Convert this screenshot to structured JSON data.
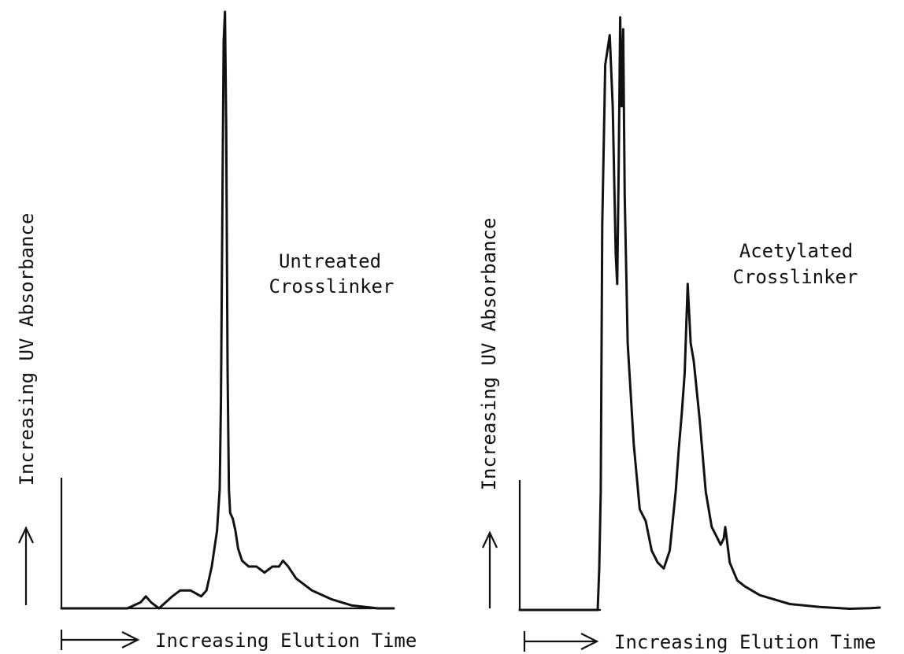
{
  "chart_data": [
    {
      "type": "line",
      "annotation": [
        "Untreated",
        "Crosslinker"
      ],
      "xlabel": "Increasing Elution Time",
      "ylabel": "Increasing UV Absorbance",
      "axis_ticks": "none",
      "grid": false,
      "series": [
        {
          "points": [
            [
              0,
              0
            ],
            [
              50,
              0
            ],
            [
              60,
              0.01
            ],
            [
              64,
              0.02
            ],
            [
              68,
              0.01
            ],
            [
              74,
              0
            ],
            [
              84,
              0.02
            ],
            [
              90,
              0.03
            ],
            [
              98,
              0.03
            ],
            [
              106,
              0.02
            ],
            [
              110,
              0.03
            ],
            [
              114,
              0.07
            ],
            [
              118,
              0.13
            ],
            [
              120,
              0.2
            ],
            [
              121,
              0.35
            ],
            [
              122,
              0.65
            ],
            [
              123,
              0.95
            ],
            [
              124,
              1.0
            ],
            [
              125,
              0.8
            ],
            [
              126,
              0.4
            ],
            [
              127,
              0.2
            ],
            [
              128,
              0.16
            ],
            [
              130,
              0.15
            ],
            [
              132,
              0.13
            ],
            [
              134,
              0.1
            ],
            [
              137,
              0.08
            ],
            [
              142,
              0.07
            ],
            [
              148,
              0.07
            ],
            [
              154,
              0.06
            ],
            [
              160,
              0.07
            ],
            [
              165,
              0.07
            ],
            [
              168,
              0.08
            ],
            [
              172,
              0.07
            ],
            [
              178,
              0.05
            ],
            [
              190,
              0.03
            ],
            [
              205,
              0.015
            ],
            [
              220,
              0.005
            ],
            [
              240,
              0
            ],
            [
              252,
              0
            ]
          ]
        }
      ]
    },
    {
      "type": "line",
      "annotation": [
        "Acetylated",
        "Crosslinker"
      ],
      "xlabel": "Increasing Elution Time",
      "ylabel": "Increasing UV Absorbance",
      "axis_ticks": "none",
      "grid": false,
      "series": [
        {
          "points": [
            [
              0,
              0
            ],
            [
              50,
              0
            ],
            [
              52,
              0
            ],
            [
              53,
              0.07
            ],
            [
              54,
              0.2
            ],
            [
              55,
              0.65
            ],
            [
              57,
              0.92
            ],
            [
              60,
              0.97
            ],
            [
              62,
              0.85
            ],
            [
              64,
              0.6
            ],
            [
              65,
              0.55
            ],
            [
              66,
              0.75
            ],
            [
              67,
              1.0
            ],
            [
              68,
              0.85
            ],
            [
              69,
              0.98
            ],
            [
              70,
              0.7
            ],
            [
              72,
              0.45
            ],
            [
              76,
              0.28
            ],
            [
              80,
              0.17
            ],
            [
              84,
              0.15
            ],
            [
              88,
              0.1
            ],
            [
              92,
              0.08
            ],
            [
              96,
              0.07
            ],
            [
              100,
              0.1
            ],
            [
              104,
              0.2
            ],
            [
              106,
              0.27
            ],
            [
              108,
              0.33
            ],
            [
              110,
              0.4
            ],
            [
              112,
              0.55
            ],
            [
              114,
              0.45
            ],
            [
              116,
              0.42
            ],
            [
              120,
              0.32
            ],
            [
              124,
              0.2
            ],
            [
              128,
              0.14
            ],
            [
              132,
              0.12
            ],
            [
              134,
              0.11
            ],
            [
              136,
              0.12
            ],
            [
              137,
              0.14
            ],
            [
              138,
              0.12
            ],
            [
              140,
              0.08
            ],
            [
              145,
              0.05
            ],
            [
              150,
              0.04
            ],
            [
              160,
              0.025
            ],
            [
              180,
              0.01
            ],
            [
              200,
              0.005
            ],
            [
              220,
              0.002
            ],
            [
              234,
              0.003
            ],
            [
              240,
              0.004
            ]
          ]
        }
      ]
    }
  ]
}
